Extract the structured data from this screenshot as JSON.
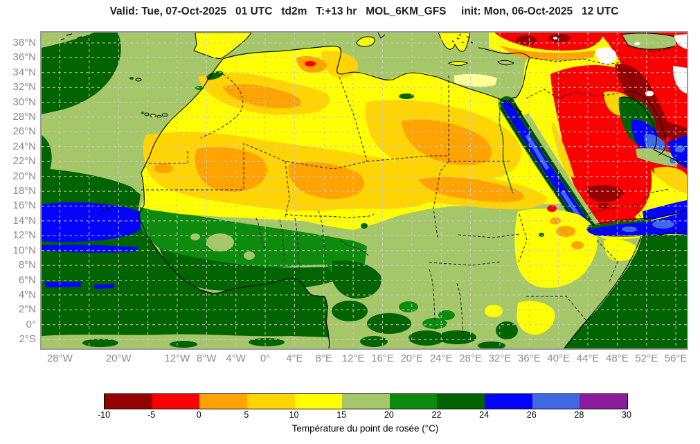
{
  "header": {
    "title": "Valid: Tue, 07-Oct-2025   01 UTC   td2m   T:+13 hr   MOL_6KM_GFS     init: Mon, 06-Oct-2025   12 UTC"
  },
  "map": {
    "variable": "td2m dewpoint temperature",
    "lon_extent": [
      -30.5,
      57.5
    ],
    "lat_extent": [
      -3.2,
      39.4
    ],
    "grid": {
      "lon_step": 4,
      "lat_step": 2
    },
    "lat_ticks": [
      {
        "value": 38,
        "label": "38°N"
      },
      {
        "value": 36,
        "label": "36°N"
      },
      {
        "value": 34,
        "label": "34°N"
      },
      {
        "value": 32,
        "label": "32°N"
      },
      {
        "value": 30,
        "label": "30°N"
      },
      {
        "value": 28,
        "label": "28°N"
      },
      {
        "value": 26,
        "label": "26°N"
      },
      {
        "value": 24,
        "label": "24°N"
      },
      {
        "value": 22,
        "label": "22°N"
      },
      {
        "value": 20,
        "label": "20°N"
      },
      {
        "value": 18,
        "label": "18°N"
      },
      {
        "value": 16,
        "label": "16°N"
      },
      {
        "value": 14,
        "label": "14°N"
      },
      {
        "value": 12,
        "label": "12°N"
      },
      {
        "value": 10,
        "label": "10°N"
      },
      {
        "value": 8,
        "label": "8°N"
      },
      {
        "value": 6,
        "label": "6°N"
      },
      {
        "value": 4,
        "label": "4°N"
      },
      {
        "value": 2,
        "label": "2°N"
      },
      {
        "value": 0,
        "label": "0°"
      },
      {
        "value": -2,
        "label": "2°S"
      }
    ],
    "lon_ticks": [
      {
        "value": -28,
        "label": "28°W"
      },
      {
        "value": -20,
        "label": "20°W"
      },
      {
        "value": -12,
        "label": "12°W"
      },
      {
        "value": -8,
        "label": "8°W"
      },
      {
        "value": -4,
        "label": "4°W"
      },
      {
        "value": 0,
        "label": "0°"
      },
      {
        "value": 4,
        "label": "4°E"
      },
      {
        "value": 8,
        "label": "8°E"
      },
      {
        "value": 12,
        "label": "12°E"
      },
      {
        "value": 16,
        "label": "16°E"
      },
      {
        "value": 20,
        "label": "20°E"
      },
      {
        "value": 24,
        "label": "24°E"
      },
      {
        "value": 28,
        "label": "28°E"
      },
      {
        "value": 32,
        "label": "32°E"
      },
      {
        "value": 36,
        "label": "36°E"
      },
      {
        "value": 40,
        "label": "40°E"
      },
      {
        "value": 44,
        "label": "44°E"
      },
      {
        "value": 48,
        "label": "48°E"
      },
      {
        "value": 52,
        "label": "52°E"
      },
      {
        "value": 56,
        "label": "56°E"
      }
    ]
  },
  "legend": {
    "caption": "Température du point de rosée (°C)",
    "levels": [
      -10,
      -5,
      0,
      5,
      10,
      15,
      20,
      22,
      24,
      26,
      28,
      30
    ],
    "tick_labels": [
      "-10",
      "-5",
      "0",
      "5",
      "10",
      "15",
      "20",
      "22",
      "24",
      "26",
      "28",
      "30"
    ],
    "colors": [
      "#940000",
      "#fa0000",
      "#ffa300",
      "#ffd400",
      "#ffff00",
      "#a5c76a",
      "#0e8b0e",
      "#016401",
      "#0404fc",
      "#4169e1",
      "#8b1c9e"
    ]
  }
}
